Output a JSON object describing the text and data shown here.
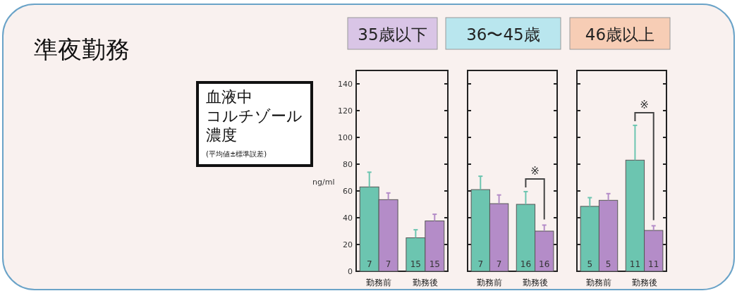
{
  "chart_data": [
    {
      "type": "bar",
      "title": "35歳以下",
      "ylabel": "ng/ml",
      "categories": [
        "勤務前",
        "勤務後"
      ],
      "series": [
        {
          "color": "#6cc5b0",
          "values": [
            63,
            25
          ],
          "errors": [
            [
              63,
              74
            ],
            [
              25,
              31
            ]
          ]
        },
        {
          "color": "#b48cc8",
          "values": [
            53.5,
            37.6
          ],
          "errors": [
            [
              53.5,
              58.5
            ],
            [
              37.6,
              42.6
            ]
          ]
        }
      ],
      "ylim": [
        0,
        150
      ],
      "yticks": [
        0,
        20,
        40,
        60,
        80,
        100,
        120,
        140
      ],
      "annotations": [
        "準夜勤務",
        "血液中",
        "コルチゾール",
        "濃度",
        "(平均値±標準誤差)",
        {
          "text": "7",
          "x": "勤務前",
          "y": 0
        },
        {
          "text": "7",
          "x": "勤務前",
          "y": 0
        },
        {
          "text": "15",
          "x": "勤務後",
          "y": 0
        },
        {
          "text": "15",
          "x": "勤務後",
          "y": 0
        }
      ]
    },
    {
      "type": "bar",
      "title": "36〜45歳",
      "categories": [
        "勤務前",
        "勤務後"
      ],
      "series": [
        {
          "color": "#6cc5b0",
          "values": [
            61,
            50
          ],
          "errors": [
            [
              61,
              71
            ],
            [
              50,
              59.5
            ]
          ]
        },
        {
          "color": "#b48cc8",
          "values": [
            50.5,
            30
          ],
          "errors": [
            [
              50.5,
              57
            ],
            [
              30,
              34.5
            ]
          ]
        }
      ],
      "ylim": [
        0,
        150
      ],
      "yticks": [
        {
          "value": 0,
          "label": null
        },
        {
          "value": 20,
          "label": null
        },
        {
          "value": 40,
          "label": null
        },
        {
          "value": 60,
          "label": null
        },
        {
          "value": 80,
          "label": null
        },
        {
          "value": 100,
          "label": null
        },
        {
          "value": 120,
          "label": null
        },
        {
          "value": 140,
          "label": null
        }
      ],
      "tick_labels": "x",
      "annotations": [
        "※",
        {
          "text": "7",
          "x": "勤務前",
          "y": 0
        },
        {
          "text": "7",
          "x": "勤務前",
          "y": 0
        },
        {
          "text": "16",
          "x": "勤務後",
          "y": 0
        },
        {
          "text": "16",
          "x": "勤務後",
          "y": 0
        }
      ]
    },
    {
      "type": "bar",
      "title": "46歳以上",
      "categories": [
        "勤務前",
        "勤務後"
      ],
      "series": [
        {
          "color": "#6cc5b0",
          "values": [
            48.5,
            83
          ],
          "errors": [
            [
              48.5,
              55
            ],
            [
              83,
              109
            ]
          ]
        },
        {
          "color": "#b48cc8",
          "values": [
            53,
            30.5
          ],
          "errors": [
            [
              53,
              58
            ],
            [
              30.5,
              34
            ]
          ]
        }
      ],
      "ylim": [
        0,
        150
      ],
      "yticks": [
        {
          "value": 0,
          "label": null
        },
        {
          "value": 20,
          "label": null
        },
        {
          "value": 40,
          "label": null
        },
        {
          "value": 60,
          "label": null
        },
        {
          "value": 80,
          "label": null
        },
        {
          "value": 100,
          "label": null
        },
        {
          "value": 120,
          "label": null
        },
        {
          "value": 140,
          "label": null
        }
      ],
      "tick_labels": "x",
      "annotations": [
        "※",
        {
          "text": "5",
          "x": "勤務前",
          "y": 0
        },
        {
          "text": "5",
          "x": "勤務前",
          "y": 0
        },
        {
          "text": "11",
          "x": "勤務後",
          "y": 0
        },
        {
          "text": "11",
          "x": "勤務後",
          "y": 0
        }
      ]
    }
  ]
}
